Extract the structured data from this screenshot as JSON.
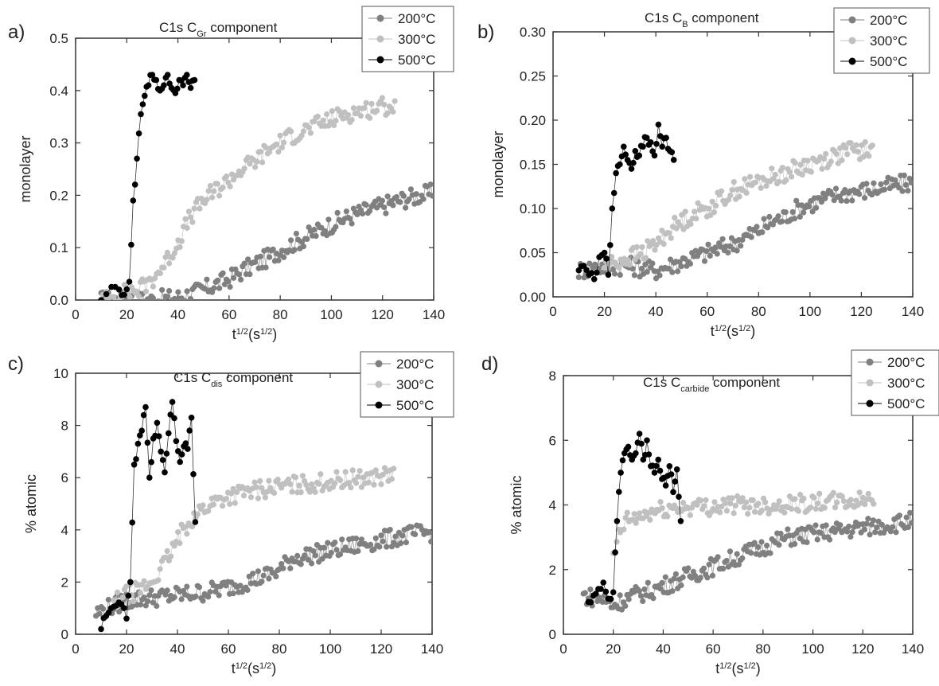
{
  "chart_data": [
    {
      "type": "scatter",
      "panel_label": "a)",
      "title": "C1s C_Gr component",
      "title_parts": [
        "C1s  C",
        "Gr",
        " component"
      ],
      "xlabel": "t^1/2(s^1/2)",
      "xlabel_parts": [
        "t",
        "1/2",
        "(s",
        "1/2",
        ")"
      ],
      "ylabel": "monolayer",
      "xlim": [
        0,
        140
      ],
      "ylim": [
        0,
        0.5
      ],
      "xticks": [
        0,
        20,
        40,
        60,
        80,
        100,
        120,
        140
      ],
      "yticks": [
        "0.0",
        "0.1",
        "0.2",
        "0.3",
        "0.4",
        "0.5"
      ],
      "grid": false,
      "legend_position": "top-right",
      "series": [
        {
          "name": "200°C",
          "color": "#808080",
          "x": [
            10,
            20,
            30,
            40,
            45,
            50,
            55,
            60,
            65,
            70,
            75,
            80,
            85,
            90,
            95,
            100,
            105,
            110,
            115,
            120,
            125,
            130,
            135,
            140
          ],
          "y": [
            0.0,
            0.0,
            0.0,
            0.005,
            0.012,
            0.02,
            0.03,
            0.04,
            0.055,
            0.068,
            0.08,
            0.095,
            0.108,
            0.12,
            0.132,
            0.145,
            0.155,
            0.165,
            0.172,
            0.18,
            0.188,
            0.195,
            0.2,
            0.205
          ]
        },
        {
          "name": "300°C",
          "color": "#c0c0c0",
          "x": [
            10,
            15,
            20,
            25,
            30,
            35,
            40,
            45,
            50,
            55,
            60,
            65,
            70,
            75,
            80,
            85,
            90,
            95,
            100,
            105,
            110,
            115,
            120,
            125
          ],
          "y": [
            0.0,
            0.005,
            0.015,
            0.02,
            0.04,
            0.07,
            0.11,
            0.16,
            0.19,
            0.21,
            0.23,
            0.25,
            0.265,
            0.285,
            0.3,
            0.315,
            0.325,
            0.335,
            0.345,
            0.355,
            0.36,
            0.365,
            0.37,
            0.372
          ]
        },
        {
          "name": "500°C",
          "color": "#000000",
          "x": [
            10,
            14,
            17,
            19,
            21,
            22.5,
            24,
            25.5,
            27,
            28.5,
            30,
            31.5,
            33,
            34.5,
            36,
            37.5,
            39,
            40.5,
            42,
            43.5,
            45,
            46.5
          ],
          "y": [
            0.0,
            0.025,
            0.02,
            0.01,
            0.035,
            0.19,
            0.27,
            0.355,
            0.39,
            0.41,
            0.43,
            0.42,
            0.4,
            0.41,
            0.43,
            0.405,
            0.395,
            0.42,
            0.41,
            0.43,
            0.405,
            0.42
          ]
        }
      ]
    },
    {
      "type": "scatter",
      "panel_label": "b)",
      "title": "C1s C_B component",
      "title_parts": [
        "C1s  C",
        "B",
        " component"
      ],
      "xlabel": "t^1/2(s^1/2)",
      "xlabel_parts": [
        "t",
        "1/2",
        "(s",
        "1/2",
        ")"
      ],
      "ylabel": "monolayer",
      "xlim": [
        0,
        140
      ],
      "ylim": [
        0,
        0.3
      ],
      "xticks": [
        0,
        20,
        40,
        60,
        80,
        100,
        120,
        140
      ],
      "yticks": [
        "0.00",
        "0.05",
        "0.10",
        "0.15",
        "0.20",
        "0.25",
        "0.30"
      ],
      "grid": false,
      "legend_position": "top-right",
      "series": [
        {
          "name": "200°C",
          "color": "#808080",
          "x": [
            10,
            20,
            30,
            40,
            45,
            50,
            55,
            60,
            65,
            70,
            75,
            80,
            85,
            90,
            95,
            100,
            105,
            110,
            115,
            120,
            125,
            130,
            135,
            140
          ],
          "y": [
            0.03,
            0.035,
            0.035,
            0.03,
            0.035,
            0.04,
            0.045,
            0.05,
            0.055,
            0.06,
            0.068,
            0.075,
            0.085,
            0.09,
            0.1,
            0.105,
            0.11,
            0.115,
            0.118,
            0.12,
            0.122,
            0.125,
            0.127,
            0.13
          ]
        },
        {
          "name": "300°C",
          "color": "#c0c0c0",
          "x": [
            20,
            25,
            30,
            35,
            40,
            45,
            50,
            55,
            60,
            65,
            70,
            75,
            80,
            85,
            90,
            95,
            100,
            105,
            110,
            115,
            120,
            125
          ],
          "y": [
            0.035,
            0.04,
            0.045,
            0.05,
            0.06,
            0.075,
            0.085,
            0.095,
            0.1,
            0.11,
            0.12,
            0.125,
            0.13,
            0.135,
            0.14,
            0.145,
            0.15,
            0.155,
            0.16,
            0.165,
            0.165,
            0.165
          ]
        },
        {
          "name": "500°C",
          "color": "#000000",
          "x": [
            10,
            12,
            14,
            16,
            18,
            20,
            21.5,
            23,
            24.5,
            26,
            27.5,
            29,
            30.5,
            32,
            33.5,
            35,
            36.5,
            38,
            39.5,
            41,
            42.5,
            44,
            45.5,
            47
          ],
          "y": [
            0.03,
            0.035,
            0.025,
            0.02,
            0.045,
            0.05,
            0.025,
            0.1,
            0.14,
            0.15,
            0.17,
            0.155,
            0.145,
            0.165,
            0.16,
            0.17,
            0.18,
            0.175,
            0.16,
            0.195,
            0.17,
            0.18,
            0.165,
            0.155
          ]
        }
      ]
    },
    {
      "type": "scatter",
      "panel_label": "c)",
      "title": "C1s C_dis component",
      "title_parts": [
        "C1s  C",
        "dis",
        " component"
      ],
      "xlabel": "t^1/2(s^1/2)",
      "xlabel_parts": [
        "t",
        "1/2",
        "(s",
        "1/2",
        ")"
      ],
      "ylabel": "% atomic",
      "xlim": [
        0,
        140
      ],
      "ylim": [
        0,
        10
      ],
      "xticks": [
        0,
        20,
        40,
        60,
        80,
        100,
        120,
        140
      ],
      "yticks": [
        "0",
        "2",
        "4",
        "6",
        "8",
        "10"
      ],
      "grid": false,
      "legend_position": "top-right",
      "series": [
        {
          "name": "200°C",
          "color": "#808080",
          "x": [
            8,
            15,
            20,
            25,
            30,
            35,
            40,
            45,
            50,
            55,
            60,
            65,
            70,
            75,
            80,
            85,
            90,
            95,
            100,
            105,
            110,
            115,
            120,
            125,
            130,
            135,
            140
          ],
          "y": [
            0.8,
            1.1,
            1.3,
            1.35,
            1.4,
            1.45,
            1.5,
            1.55,
            1.6,
            1.7,
            1.8,
            1.95,
            2.1,
            2.25,
            2.45,
            2.9,
            3.0,
            3.1,
            3.2,
            3.3,
            3.4,
            3.5,
            3.6,
            3.7,
            3.8,
            3.85,
            3.9
          ]
        },
        {
          "name": "300°C",
          "color": "#c0c0c0",
          "x": [
            15,
            20,
            25,
            30,
            35,
            40,
            45,
            50,
            55,
            60,
            65,
            70,
            75,
            80,
            85,
            90,
            95,
            100,
            105,
            110,
            115,
            120,
            125
          ],
          "y": [
            1.2,
            1.5,
            1.7,
            2.0,
            2.7,
            3.6,
            4.4,
            4.8,
            5.1,
            5.3,
            5.4,
            5.5,
            5.6,
            5.65,
            5.7,
            5.75,
            5.8,
            5.85,
            5.9,
            5.95,
            6.0,
            6.05,
            6.1
          ]
        },
        {
          "name": "500°C",
          "color": "#000000",
          "x": [
            10,
            12,
            14,
            16,
            18,
            20,
            21.5,
            23,
            24.5,
            26,
            27.5,
            29,
            30.5,
            32,
            33.5,
            35,
            36.5,
            38,
            39.5,
            41,
            42.5,
            44,
            45.5,
            47
          ],
          "y": [
            0.2,
            0.7,
            1.0,
            1.1,
            1.15,
            0.6,
            2.0,
            6.5,
            7.3,
            7.8,
            8.7,
            6.0,
            7.5,
            8.1,
            7.0,
            6.2,
            7.7,
            8.9,
            7.4,
            6.6,
            7.2,
            7.1,
            8.3,
            4.3
          ]
        }
      ]
    },
    {
      "type": "scatter",
      "panel_label": "d)",
      "title": "C1s C_carbide component",
      "title_parts": [
        "C1s  C",
        "carbide",
        " component"
      ],
      "xlabel": "t^1/2(s^1/2)",
      "xlabel_parts": [
        "t",
        "1/2",
        "(s",
        "1/2",
        ")"
      ],
      "ylabel": "% atomic",
      "xlim": [
        0,
        140
      ],
      "ylim": [
        0,
        8
      ],
      "xticks": [
        0,
        20,
        40,
        60,
        80,
        100,
        120,
        140
      ],
      "yticks": [
        "0",
        "2",
        "4",
        "6",
        "8"
      ],
      "grid": false,
      "legend_position": "top-right",
      "series": [
        {
          "name": "200°C",
          "color": "#808080",
          "x": [
            8,
            15,
            20,
            25,
            30,
            35,
            40,
            45,
            50,
            55,
            60,
            65,
            70,
            75,
            80,
            85,
            90,
            95,
            100,
            105,
            110,
            115,
            120,
            125,
            130,
            135,
            140
          ],
          "y": [
            1.2,
            1.1,
            0.9,
            1.1,
            1.25,
            1.35,
            1.5,
            1.65,
            1.8,
            1.95,
            2.1,
            2.25,
            2.4,
            2.55,
            2.7,
            2.85,
            3.0,
            3.05,
            3.1,
            3.15,
            3.2,
            3.25,
            3.3,
            3.35,
            3.4,
            3.45,
            3.5
          ]
        },
        {
          "name": "300°C",
          "color": "#c0c0c0",
          "x": [
            20,
            22,
            25,
            30,
            35,
            40,
            45,
            50,
            55,
            60,
            65,
            70,
            75,
            80,
            85,
            90,
            95,
            100,
            105,
            110,
            115,
            120,
            125
          ],
          "y": [
            2.3,
            3.0,
            3.5,
            3.6,
            3.75,
            3.85,
            3.9,
            3.95,
            3.95,
            3.95,
            4.0,
            4.0,
            4.0,
            4.0,
            4.0,
            4.05,
            4.05,
            4.05,
            4.1,
            4.1,
            4.1,
            4.15,
            4.2
          ]
        },
        {
          "name": "500°C",
          "color": "#000000",
          "x": [
            10,
            12,
            14,
            16,
            18,
            20,
            21.5,
            23,
            24.5,
            26,
            27.5,
            29,
            30.5,
            32,
            33.5,
            35,
            36.5,
            38,
            39.5,
            41,
            42.5,
            44,
            45.5,
            47
          ],
          "y": [
            1.0,
            1.2,
            1.4,
            1.6,
            1.1,
            1.3,
            3.5,
            5.0,
            5.6,
            5.8,
            5.4,
            5.6,
            6.2,
            5.4,
            6.0,
            5.2,
            5.0,
            5.4,
            4.8,
            4.6,
            5.2,
            4.4,
            5.1,
            3.5
          ]
        }
      ]
    }
  ]
}
